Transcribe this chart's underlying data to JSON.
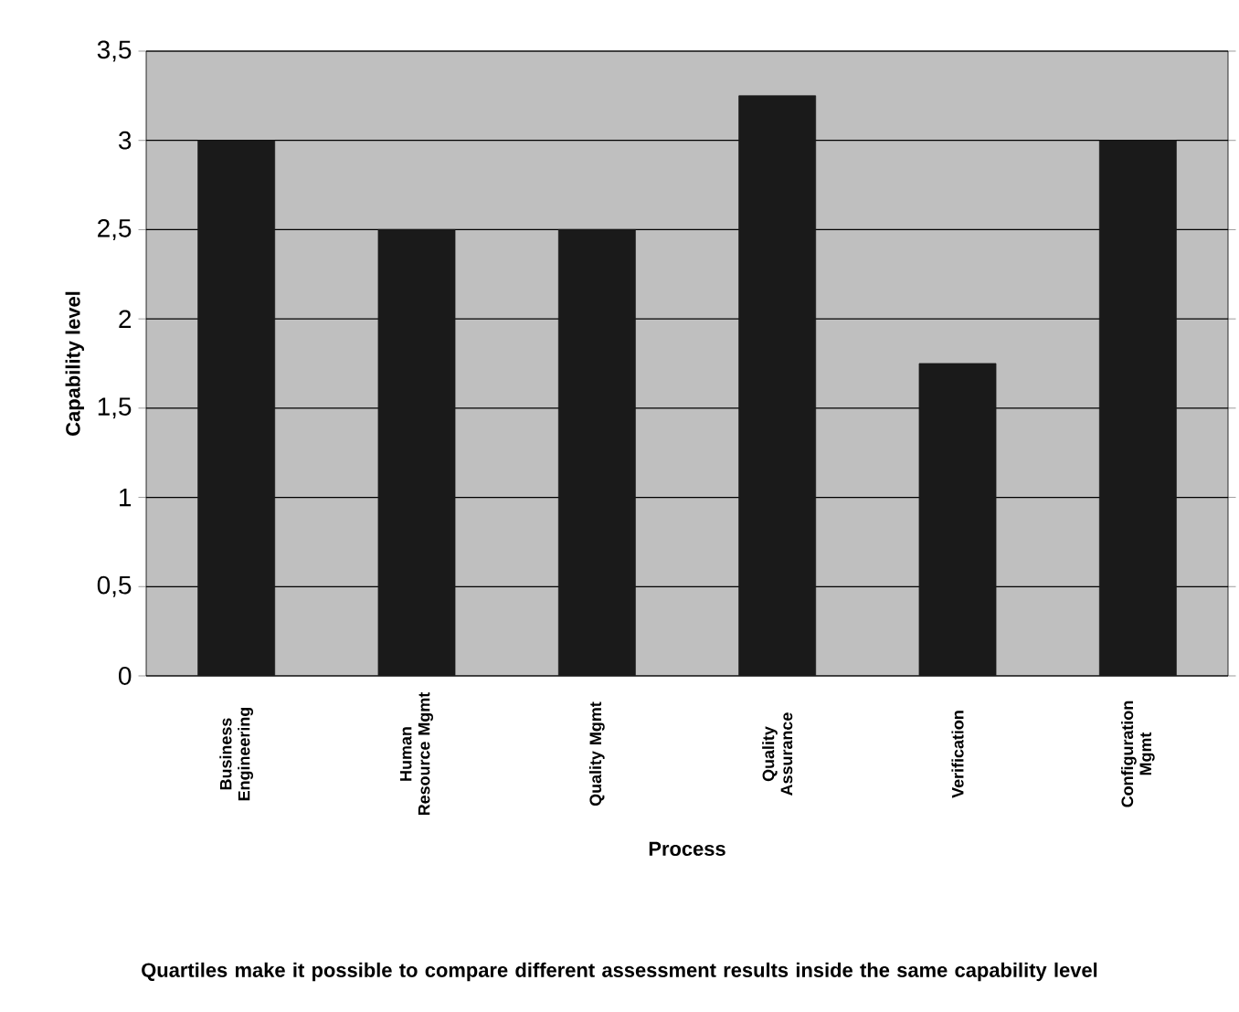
{
  "chart_data": {
    "type": "bar",
    "xlabel": "Process",
    "ylabel": "Capability level",
    "categories": [
      "Business Engineering",
      "Human Resource Mgmt",
      "Quality Mgmt",
      "Quality Assurance",
      "Verification",
      "Configuration Mgmt"
    ],
    "values": [
      3,
      2.5,
      2.5,
      3.25,
      1.75,
      3
    ],
    "color": "#1a1a1a",
    "ylim": [
      0,
      3.5
    ],
    "yticks": [
      {
        "value": 0,
        "label": "0"
      },
      {
        "value": 0.5,
        "label": "0,5"
      },
      {
        "value": 1,
        "label": "1"
      },
      {
        "value": 1.5,
        "label": "1,5"
      },
      {
        "value": 2,
        "label": "2"
      },
      {
        "value": 2.5,
        "label": "2,5"
      },
      {
        "value": 3,
        "label": "3"
      },
      {
        "value": 3.5,
        "label": "3,5"
      }
    ],
    "grid": "y",
    "annotations": [
      "Quartiles make it possible to compare different assessment results inside the same capability level"
    ]
  }
}
